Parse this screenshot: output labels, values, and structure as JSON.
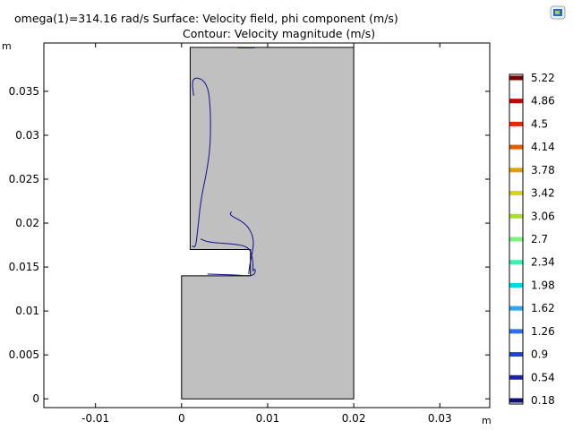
{
  "title": {
    "line1": "omega(1)=314.16 rad/s   Surface: Velocity field, phi component (m/s)",
    "line2": "Contour: Velocity magnitude (m/s)"
  },
  "x_unit": "m",
  "y_unit": "m",
  "toolbar": {
    "export_icon": "image-export-icon"
  },
  "colors": {
    "domain_fill": "#c0c0c0",
    "contour": "#1e1e96"
  },
  "chart_data": {
    "type": "contour",
    "xlim": [
      -0.016,
      0.0358
    ],
    "ylim": [
      -0.001,
      0.0405
    ],
    "x_ticks": [
      {
        "value": -0.01,
        "label": "-0.01"
      },
      {
        "value": 0,
        "label": "0"
      },
      {
        "value": 0.01,
        "label": "0.01"
      },
      {
        "value": 0.02,
        "label": "0.02"
      },
      {
        "value": 0.03,
        "label": "0.03"
      }
    ],
    "y_ticks": [
      {
        "value": 0,
        "label": "0"
      },
      {
        "value": 0.005,
        "label": "0.005"
      },
      {
        "value": 0.01,
        "label": "0.01"
      },
      {
        "value": 0.015,
        "label": "0.015"
      },
      {
        "value": 0.02,
        "label": "0.02"
      },
      {
        "value": 0.025,
        "label": "0.025"
      },
      {
        "value": 0.03,
        "label": "0.03"
      },
      {
        "value": 0.035,
        "label": "0.035"
      }
    ],
    "grid": false,
    "domain_outline": [
      [
        0,
        0
      ],
      [
        0.02,
        0
      ],
      [
        0.02,
        0.04
      ],
      [
        0.001,
        0.04
      ],
      [
        0.001,
        0.017
      ],
      [
        0.008,
        0.017
      ],
      [
        0.008,
        0.014
      ],
      [
        0,
        0.014
      ]
    ],
    "contours": [
      [
        [
          0.0065,
          0.03995
        ],
        [
          0.0085,
          0.03995
        ]
      ],
      [
        [
          0.0012,
          0.0174
        ],
        [
          0.0016,
          0.0172
        ],
        [
          0.0018,
          0.0185
        ],
        [
          0.0022,
          0.0225
        ],
        [
          0.003,
          0.0262
        ],
        [
          0.0034,
          0.0295
        ],
        [
          0.0033,
          0.0345
        ],
        [
          0.0027,
          0.0362
        ],
        [
          0.0017,
          0.0366
        ],
        [
          0.0012,
          0.0362
        ],
        [
          0.0014,
          0.0345
        ]
      ],
      [
        [
          0.0022,
          0.0182
        ],
        [
          0.0032,
          0.0178
        ],
        [
          0.0065,
          0.0176
        ],
        [
          0.0079,
          0.0172
        ],
        [
          0.0083,
          0.0158
        ],
        [
          0.0083,
          0.0145
        ]
      ],
      [
        [
          0.0058,
          0.0213
        ],
        [
          0.0056,
          0.021
        ],
        [
          0.006,
          0.0207
        ],
        [
          0.0072,
          0.0201
        ],
        [
          0.008,
          0.0192
        ],
        [
          0.0084,
          0.018
        ],
        [
          0.0082,
          0.0165
        ],
        [
          0.0079,
          0.0152
        ],
        [
          0.0078,
          0.0142
        ]
      ],
      [
        [
          0.003,
          0.0142
        ],
        [
          0.006,
          0.0141
        ],
        [
          0.0078,
          0.014
        ],
        [
          0.0084,
          0.0141
        ],
        [
          0.0086,
          0.0145
        ],
        [
          0.0085,
          0.0148
        ],
        [
          0.0083,
          0.0146
        ]
      ]
    ],
    "colorbar": {
      "levels": [
        "5.22",
        "4.86",
        "4.5",
        "4.14",
        "3.78",
        "3.42",
        "3.06",
        "2.7",
        "2.34",
        "1.98",
        "1.62",
        "1.26",
        "0.9",
        "0.54",
        "0.18"
      ],
      "colors": [
        "#7a0000",
        "#c80000",
        "#e62a00",
        "#e65a00",
        "#e0a000",
        "#d8d800",
        "#a8e030",
        "#80f080",
        "#40f0b0",
        "#00d8e8",
        "#30a8f0",
        "#3070f0",
        "#2040e0",
        "#2020b0",
        "#101070"
      ]
    }
  }
}
